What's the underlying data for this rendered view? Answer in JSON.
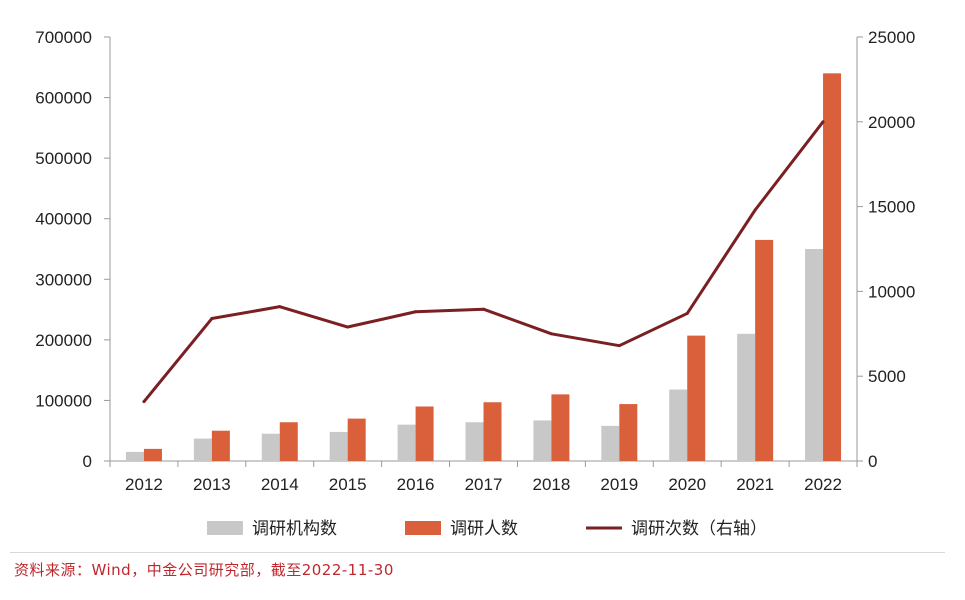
{
  "chart_data": {
    "type": "bar+line",
    "categories": [
      "2012",
      "2013",
      "2014",
      "2015",
      "2016",
      "2017",
      "2018",
      "2019",
      "2020",
      "2021",
      "2022"
    ],
    "series": [
      {
        "name": "调研机构数",
        "type": "bar",
        "axis": "left",
        "color": "#c8c8c8",
        "values": [
          15000,
          37000,
          45000,
          48000,
          60000,
          64000,
          67000,
          58000,
          118000,
          210000,
          350000
        ]
      },
      {
        "name": "调研人数",
        "type": "bar",
        "axis": "left",
        "color": "#d9603b",
        "values": [
          20000,
          50000,
          64000,
          70000,
          90000,
          97000,
          110000,
          94000,
          207000,
          365000,
          640000
        ]
      },
      {
        "name": "调研次数（右轴）",
        "type": "line",
        "axis": "right",
        "color": "#7b1f22",
        "values": [
          3500,
          8400,
          9100,
          7900,
          8800,
          8950,
          7500,
          6800,
          8700,
          14800,
          20000
        ]
      }
    ],
    "left_axis": {
      "min": 0,
      "max": 700000,
      "ticks": [
        "0",
        "100000",
        "200000",
        "300000",
        "400000",
        "500000",
        "600000",
        "700000"
      ]
    },
    "right_axis": {
      "min": 0,
      "max": 25000,
      "ticks": [
        "0",
        "5000",
        "10000",
        "15000",
        "20000",
        "25000"
      ]
    },
    "legend_position": "bottom"
  },
  "source_text": "资料来源：Wind，中金公司研究部，截至2022-11-30"
}
